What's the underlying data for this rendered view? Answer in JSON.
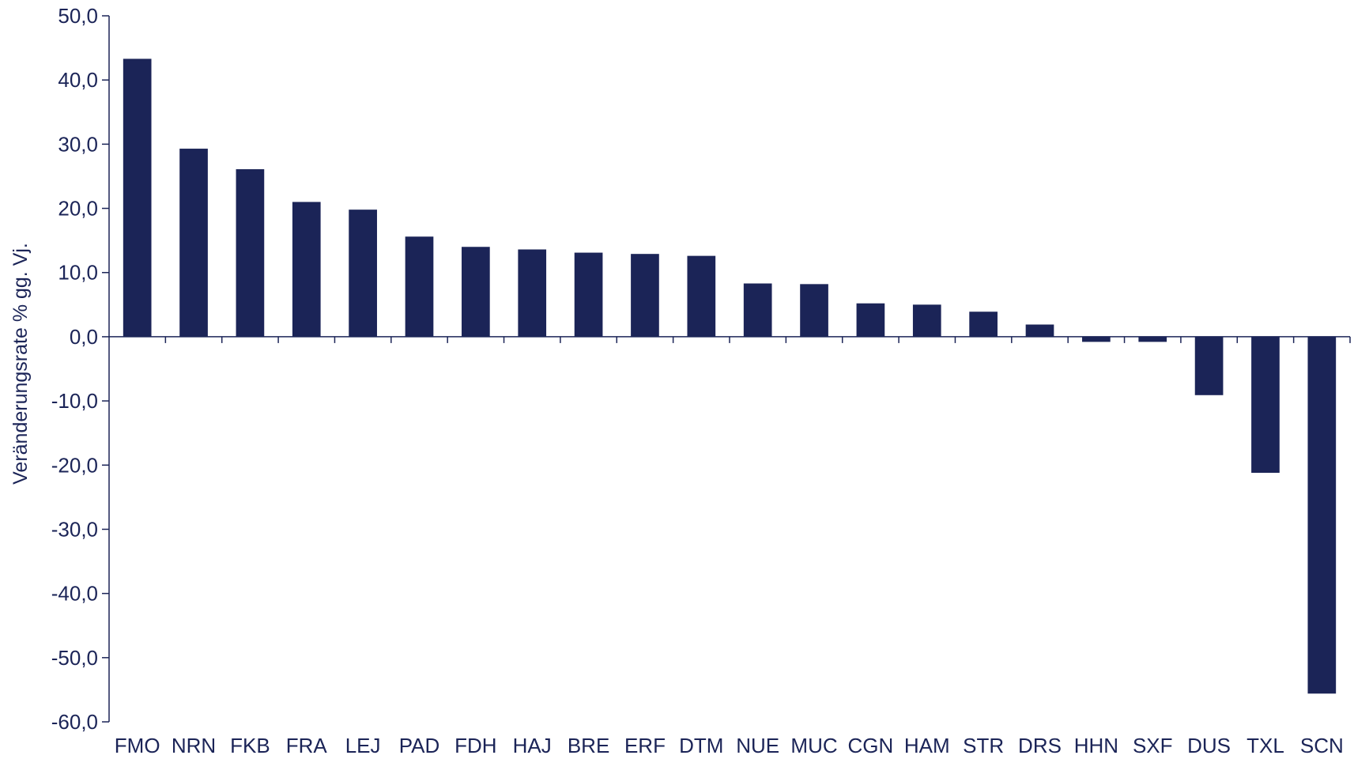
{
  "chart_data": {
    "type": "bar",
    "title": "",
    "xlabel": "",
    "ylabel": "Veränderungsrate % gg. Vj.",
    "ylim": [
      -60,
      50
    ],
    "y_ticks": [
      "50,0",
      "40,0",
      "30,0",
      "20,0",
      "10,0",
      "0,0",
      "-10,0",
      "-20,0",
      "-30,0",
      "-40,0",
      "-50,0",
      "-60,0"
    ],
    "y_tick_values": [
      50,
      40,
      30,
      20,
      10,
      0,
      -10,
      -20,
      -30,
      -40,
      -50,
      -60
    ],
    "categories": [
      "FMO",
      "NRN",
      "FKB",
      "FRA",
      "LEJ",
      "PAD",
      "FDH",
      "HAJ",
      "BRE",
      "ERF",
      "DTM",
      "NUE",
      "MUC",
      "CGN",
      "HAM",
      "STR",
      "DRS",
      "HHN",
      "SXF",
      "DUS",
      "TXL",
      "SCN"
    ],
    "values": [
      43.3,
      29.3,
      26.1,
      21.0,
      19.8,
      15.6,
      14.0,
      13.6,
      13.1,
      12.9,
      12.6,
      8.3,
      8.2,
      5.2,
      5.0,
      3.9,
      1.9,
      -0.8,
      -0.8,
      -9.1,
      -21.2,
      -55.6
    ],
    "grid": false,
    "legend": "none",
    "bar_color": "#1b2457",
    "axis_color": "#1b2457",
    "text_color": "#1b2457"
  }
}
